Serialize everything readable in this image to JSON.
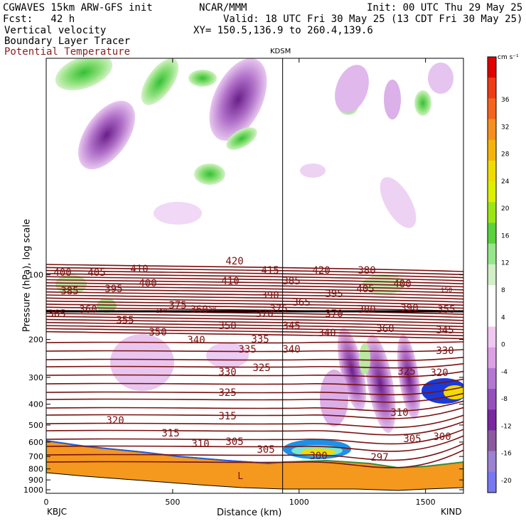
{
  "header": {
    "model": "CGWAVES 15km ARW-GFS init",
    "forecast": "Fcst:   42 h",
    "field1": "Vertical velocity",
    "field2": "Boundary Layer Tracer",
    "field3": "Potential Temperature",
    "center": "NCAR/MMM",
    "init": "Init: 00 UTC Thu 29 May 25",
    "valid": "Valid: 18 UTC Fri 30 May 25 (13 CDT Fri 30 May 25)",
    "xy": "XY= 150.5,136.9 to 260.4,139.6",
    "station_mid": "KDSM",
    "station_left": "KBJC",
    "station_right": "KIND"
  },
  "colors": {
    "theta_line": "#7a1010",
    "purple": "#8a3aa8",
    "green": "#4cc84c",
    "orange": "#f5901e"
  },
  "chart_data": {
    "type": "heatmap",
    "xlabel": "Distance (km)",
    "ylabel": "Pressure (hPa), log scale",
    "xlim": [
      0,
      1650
    ],
    "x_ticks": [
      0,
      500,
      1000,
      1500
    ],
    "y_ticks": [
      100,
      200,
      300,
      400,
      500,
      600,
      700,
      800,
      900,
      1000
    ],
    "y_scale": "log",
    "station_marker_km": 935,
    "colorbar": {
      "unit": "cm s⁻¹",
      "labels": [
        "36",
        "32",
        "28",
        "24",
        "20",
        "16",
        "12",
        "8",
        "4",
        "0",
        "-4",
        "-8",
        "-12",
        "-16",
        "-20"
      ],
      "colors": [
        "#e00000",
        "#f03c14",
        "#f5641e",
        "#f5901e",
        "#f5b40a",
        "#f0dc00",
        "#dcf000",
        "#9be614",
        "#5ad23c",
        "#96e68c",
        "#d2f0c8",
        "#ffffff",
        "#ffffff",
        "#f0c8f0",
        "#dca0e6",
        "#b478d2",
        "#9650be",
        "#7828a0",
        "#8c5aa0",
        "#9b82d2",
        "#7878f0"
      ]
    },
    "theta_labels": [
      "420",
      "400",
      "405",
      "410",
      "410",
      "415",
      "420",
      "380",
      "385",
      "395",
      "400",
      "385",
      "390",
      "395",
      "405",
      "400",
      "150",
      "360",
      "365",
      "370",
      "150",
      "375",
      "360",
      "150",
      "375",
      "365",
      "370",
      "380",
      "390",
      "355",
      "355",
      "360",
      "345",
      "350",
      "350",
      "345",
      "340",
      "340",
      "335",
      "335",
      "340",
      "330",
      "330",
      "325",
      "325",
      "325",
      "320",
      "320",
      "315",
      "315",
      "310",
      "310",
      "305",
      "305",
      "305",
      "300",
      "300",
      "297"
    ],
    "low_label": "L"
  }
}
